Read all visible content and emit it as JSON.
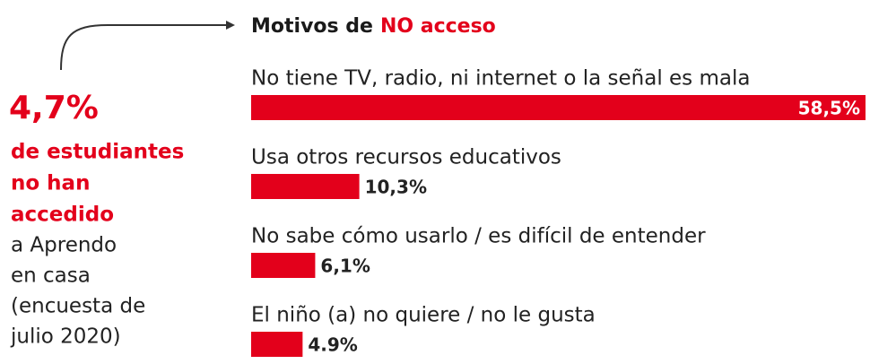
{
  "chart_data": {
    "type": "bar",
    "title": "Motivos de",
    "title_highlight": "NO acceso",
    "categories": [
      "No tiene TV, radio, ni internet o la señal es mala",
      "Usa otros recursos educativos",
      "No sabe cómo usarlo / es difícil de entender",
      "El niño (a) no quiere / no le gusta"
    ],
    "values": [
      58.5,
      10.3,
      6.1,
      4.9
    ],
    "value_labels": [
      "58,5%",
      "10,3%",
      "6,1%",
      "4.9%"
    ],
    "color": "#e3001b",
    "annotation": {
      "value": "4,7%",
      "highlight_lines": [
        "de estudiantes",
        "no han",
        "accedido"
      ],
      "lines": [
        "a Aprendo",
        "en casa",
        "(encuesta de",
        "julio 2020)"
      ]
    }
  }
}
